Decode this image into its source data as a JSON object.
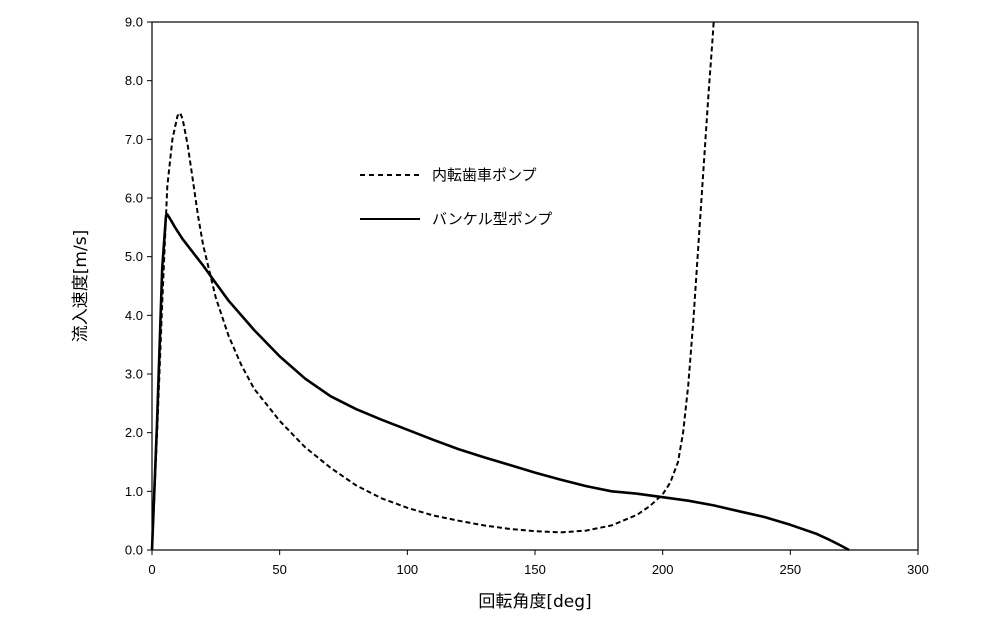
{
  "chart_data": {
    "type": "line",
    "xlabel": "回転角度[deg]",
    "ylabel": "流入速度[m/s]",
    "xlim": [
      0,
      300
    ],
    "ylim": [
      0,
      9
    ],
    "x_ticks": [
      "0",
      "50",
      "100",
      "150",
      "200",
      "250",
      "300"
    ],
    "y_ticks": [
      "0.0",
      "1.0",
      "2.0",
      "3.0",
      "4.0",
      "5.0",
      "6.0",
      "7.0",
      "8.0",
      "9.0"
    ],
    "grid": false,
    "legend_position": "upper-center",
    "series": [
      {
        "name": "内転歯車ポンプ",
        "style": "dashed",
        "color": "#000000",
        "points": [
          [
            0,
            0
          ],
          [
            2,
            2
          ],
          [
            4,
            4.2
          ],
          [
            6,
            6.2
          ],
          [
            8,
            7.0
          ],
          [
            10,
            7.4
          ],
          [
            11,
            7.45
          ],
          [
            12,
            7.35
          ],
          [
            14,
            6.9
          ],
          [
            16,
            6.3
          ],
          [
            18,
            5.7
          ],
          [
            20,
            5.2
          ],
          [
            25,
            4.3
          ],
          [
            30,
            3.65
          ],
          [
            35,
            3.15
          ],
          [
            40,
            2.75
          ],
          [
            50,
            2.2
          ],
          [
            60,
            1.75
          ],
          [
            70,
            1.4
          ],
          [
            80,
            1.1
          ],
          [
            90,
            0.88
          ],
          [
            100,
            0.72
          ],
          [
            110,
            0.59
          ],
          [
            120,
            0.5
          ],
          [
            130,
            0.42
          ],
          [
            140,
            0.36
          ],
          [
            150,
            0.32
          ],
          [
            160,
            0.3
          ],
          [
            170,
            0.33
          ],
          [
            180,
            0.42
          ],
          [
            190,
            0.6
          ],
          [
            195,
            0.75
          ],
          [
            200,
            0.95
          ],
          [
            203,
            1.15
          ],
          [
            206,
            1.5
          ],
          [
            208,
            2.0
          ],
          [
            210,
            2.8
          ],
          [
            212,
            3.9
          ],
          [
            214,
            5.2
          ],
          [
            216,
            6.5
          ],
          [
            218,
            7.8
          ],
          [
            219.5,
            8.7
          ],
          [
            220,
            9.0
          ]
        ]
      },
      {
        "name": "バンケル型ポンプ",
        "style": "solid",
        "color": "#000000",
        "points": [
          [
            0,
            0
          ],
          [
            2,
            2.2
          ],
          [
            4,
            4.8
          ],
          [
            5.5,
            5.7
          ],
          [
            6,
            5.72
          ],
          [
            7,
            5.65
          ],
          [
            9,
            5.5
          ],
          [
            12,
            5.3
          ],
          [
            20,
            4.85
          ],
          [
            25,
            4.55
          ],
          [
            30,
            4.25
          ],
          [
            40,
            3.75
          ],
          [
            50,
            3.3
          ],
          [
            60,
            2.92
          ],
          [
            70,
            2.62
          ],
          [
            80,
            2.4
          ],
          [
            90,
            2.22
          ],
          [
            100,
            2.05
          ],
          [
            110,
            1.88
          ],
          [
            120,
            1.72
          ],
          [
            130,
            1.58
          ],
          [
            140,
            1.45
          ],
          [
            150,
            1.32
          ],
          [
            160,
            1.2
          ],
          [
            170,
            1.09
          ],
          [
            180,
            1.0
          ],
          [
            190,
            0.96
          ],
          [
            200,
            0.9
          ],
          [
            210,
            0.84
          ],
          [
            220,
            0.76
          ],
          [
            230,
            0.66
          ],
          [
            240,
            0.56
          ],
          [
            250,
            0.43
          ],
          [
            260,
            0.28
          ],
          [
            265,
            0.18
          ],
          [
            270,
            0.07
          ],
          [
            273,
            0.0
          ]
        ]
      }
    ]
  }
}
